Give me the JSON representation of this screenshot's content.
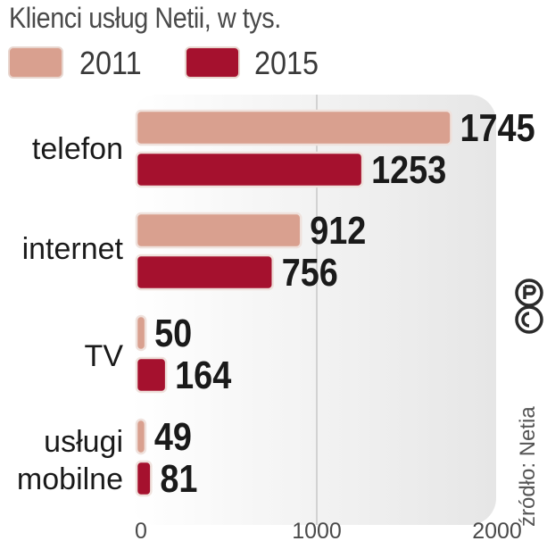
{
  "chart_data": {
    "type": "bar",
    "orientation": "horizontal",
    "title": "Klienci usług Netii, w tys.",
    "categories": [
      [
        "telefon"
      ],
      [
        "internet"
      ],
      [
        "TV"
      ],
      [
        "usługi",
        "mobilne"
      ]
    ],
    "series": [
      {
        "name": "2011",
        "color": "#d9a08f",
        "values": [
          1745,
          912,
          50,
          49
        ]
      },
      {
        "name": "2015",
        "color": "#a5112e",
        "values": [
          1253,
          756,
          164,
          81
        ]
      }
    ],
    "value_labels": [
      [
        "1745",
        "912",
        "50",
        "49"
      ],
      [
        "1253",
        "756",
        "164",
        "81"
      ]
    ],
    "xlim": [
      0,
      2000
    ],
    "x_ticks": [
      "0",
      "1000",
      "2000"
    ],
    "grid": true,
    "legend_position": "top"
  },
  "source": "źródło: Netia",
  "copyright_icon": "cp-logo-icon"
}
